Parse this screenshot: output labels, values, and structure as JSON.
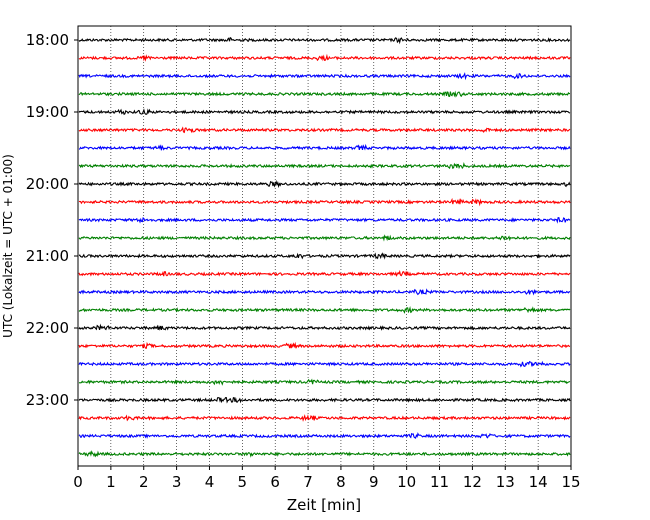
{
  "chart_data": {
    "type": "line",
    "title": "",
    "xlabel": "Zeit  [min]",
    "ylabel": "UTC (Lokalzeit = UTC + 01:00)",
    "xlim": [
      0,
      15
    ],
    "x_ticks": [
      "0",
      "1",
      "2",
      "3",
      "4",
      "5",
      "6",
      "7",
      "8",
      "9",
      "10",
      "11",
      "12",
      "13",
      "14",
      "15"
    ],
    "y_ticks": [
      "18:00",
      "19:00",
      "20:00",
      "21:00",
      "22:00",
      "23:00"
    ],
    "grid": "vertical dotted at each minute",
    "trace_colors": [
      "#000000",
      "#ff0000",
      "#0000ff",
      "#008000"
    ],
    "traces_per_hour": 4,
    "trace_interval_min": 15,
    "start": "18:00",
    "trace_count": 24
  }
}
